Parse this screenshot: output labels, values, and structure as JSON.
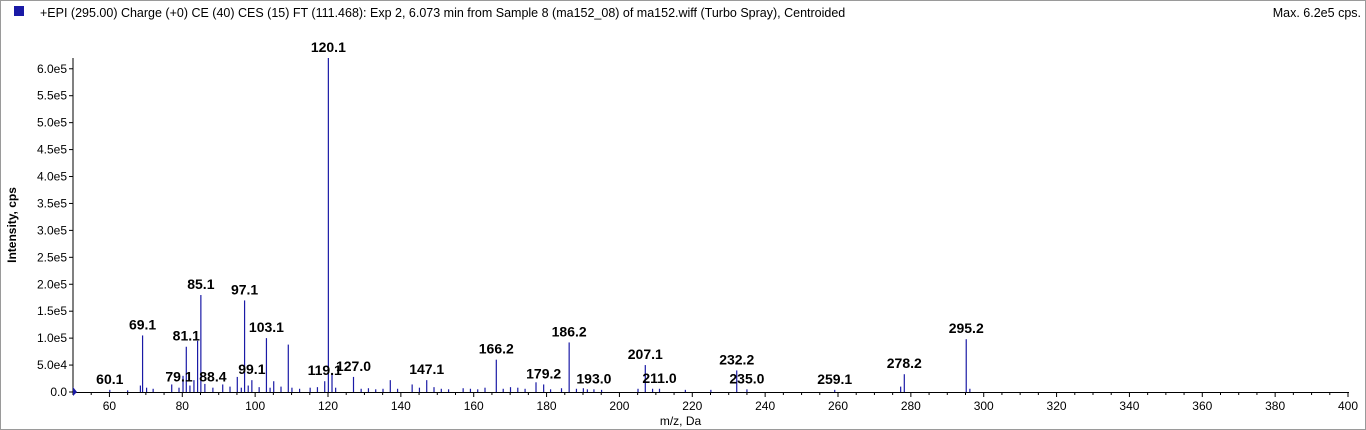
{
  "header": {
    "title": "+EPI (295.00) Charge (+0) CE (40) CES (15) FT (111.468): Exp 2, 6.073 min from Sample 8 (ma152_08) of ma152.wiff (Turbo Spray), Centroided",
    "max_label": "Max. 6.2e5 cps.",
    "swatch_color": "#1a1aa6"
  },
  "chart_data": {
    "type": "bar",
    "title": "",
    "xlabel": "m/z, Da",
    "ylabel": "Intensity, cps",
    "xlim": [
      50,
      400
    ],
    "ylim": [
      0,
      620000
    ],
    "grid": false,
    "bar_color": "#1a1aa6",
    "xticks": [
      60,
      80,
      100,
      120,
      140,
      160,
      180,
      200,
      220,
      240,
      260,
      280,
      300,
      320,
      340,
      360,
      380,
      400
    ],
    "yticks": [
      {
        "value": 0,
        "label": "0.0"
      },
      {
        "value": 50000,
        "label": "5.0e4"
      },
      {
        "value": 100000,
        "label": "1.0e5"
      },
      {
        "value": 150000,
        "label": "1.5e5"
      },
      {
        "value": 200000,
        "label": "2.0e5"
      },
      {
        "value": 250000,
        "label": "2.5e5"
      },
      {
        "value": 300000,
        "label": "3.0e5"
      },
      {
        "value": 350000,
        "label": "3.5e5"
      },
      {
        "value": 400000,
        "label": "4.0e5"
      },
      {
        "value": 450000,
        "label": "4.5e5"
      },
      {
        "value": 500000,
        "label": "5.0e5"
      },
      {
        "value": 550000,
        "label": "5.5e5"
      },
      {
        "value": 600000,
        "label": "6.0e5"
      }
    ],
    "peaks": [
      {
        "x": 50.2,
        "y": 5000
      },
      {
        "x": 60.1,
        "y": 4000
      },
      {
        "x": 65.0,
        "y": 3000
      },
      {
        "x": 68.5,
        "y": 12000
      },
      {
        "x": 69.1,
        "y": 105000
      },
      {
        "x": 70.2,
        "y": 8000
      },
      {
        "x": 72.0,
        "y": 6000
      },
      {
        "x": 77.1,
        "y": 14000
      },
      {
        "x": 79.1,
        "y": 8000
      },
      {
        "x": 80.2,
        "y": 30000
      },
      {
        "x": 81.1,
        "y": 84000
      },
      {
        "x": 82.1,
        "y": 12000
      },
      {
        "x": 83.2,
        "y": 22000
      },
      {
        "x": 84.2,
        "y": 95000
      },
      {
        "x": 85.1,
        "y": 180000
      },
      {
        "x": 86.2,
        "y": 15000
      },
      {
        "x": 88.4,
        "y": 8000
      },
      {
        "x": 91.1,
        "y": 14000
      },
      {
        "x": 93.1,
        "y": 10000
      },
      {
        "x": 95.1,
        "y": 28000
      },
      {
        "x": 96.2,
        "y": 8000
      },
      {
        "x": 97.1,
        "y": 170000
      },
      {
        "x": 98.1,
        "y": 12000
      },
      {
        "x": 99.1,
        "y": 22000
      },
      {
        "x": 101.1,
        "y": 9000
      },
      {
        "x": 103.1,
        "y": 100000
      },
      {
        "x": 104.1,
        "y": 8000
      },
      {
        "x": 105.1,
        "y": 20000
      },
      {
        "x": 107.1,
        "y": 10000
      },
      {
        "x": 109.1,
        "y": 88000
      },
      {
        "x": 110.1,
        "y": 8000
      },
      {
        "x": 112.2,
        "y": 6000
      },
      {
        "x": 115.1,
        "y": 8000
      },
      {
        "x": 117.1,
        "y": 9000
      },
      {
        "x": 119.1,
        "y": 20000
      },
      {
        "x": 120.1,
        "y": 620000
      },
      {
        "x": 121.1,
        "y": 35000
      },
      {
        "x": 122.1,
        "y": 8000
      },
      {
        "x": 127.0,
        "y": 28000
      },
      {
        "x": 129.1,
        "y": 6000
      },
      {
        "x": 131.1,
        "y": 7000
      },
      {
        "x": 133.1,
        "y": 5000
      },
      {
        "x": 135.1,
        "y": 6000
      },
      {
        "x": 137.1,
        "y": 22000
      },
      {
        "x": 139.1,
        "y": 6000
      },
      {
        "x": 143.1,
        "y": 14000
      },
      {
        "x": 145.1,
        "y": 8000
      },
      {
        "x": 147.1,
        "y": 22000
      },
      {
        "x": 149.1,
        "y": 9000
      },
      {
        "x": 151.1,
        "y": 6000
      },
      {
        "x": 153.1,
        "y": 5000
      },
      {
        "x": 157.1,
        "y": 7000
      },
      {
        "x": 159.1,
        "y": 6000
      },
      {
        "x": 161.1,
        "y": 5000
      },
      {
        "x": 163.1,
        "y": 8000
      },
      {
        "x": 166.2,
        "y": 60000
      },
      {
        "x": 168.1,
        "y": 6000
      },
      {
        "x": 170.1,
        "y": 9000
      },
      {
        "x": 172.1,
        "y": 8000
      },
      {
        "x": 174.1,
        "y": 6000
      },
      {
        "x": 177.1,
        "y": 18000
      },
      {
        "x": 179.2,
        "y": 14000
      },
      {
        "x": 181.1,
        "y": 5000
      },
      {
        "x": 184.1,
        "y": 7000
      },
      {
        "x": 186.2,
        "y": 92000
      },
      {
        "x": 188.2,
        "y": 6000
      },
      {
        "x": 190.1,
        "y": 7000
      },
      {
        "x": 191.2,
        "y": 5000
      },
      {
        "x": 193.0,
        "y": 5000
      },
      {
        "x": 195.1,
        "y": 4000
      },
      {
        "x": 205.1,
        "y": 6000
      },
      {
        "x": 207.1,
        "y": 50000
      },
      {
        "x": 209.1,
        "y": 6000
      },
      {
        "x": 211.0,
        "y": 6000
      },
      {
        "x": 218.1,
        "y": 4000
      },
      {
        "x": 225.1,
        "y": 4000
      },
      {
        "x": 232.2,
        "y": 40000
      },
      {
        "x": 235.0,
        "y": 5000
      },
      {
        "x": 259.1,
        "y": 4000
      },
      {
        "x": 277.2,
        "y": 10000
      },
      {
        "x": 278.2,
        "y": 33000
      },
      {
        "x": 295.2,
        "y": 98000
      },
      {
        "x": 296.2,
        "y": 6000
      }
    ],
    "annotations": [
      {
        "text": "60.1",
        "x": 60.1,
        "y": 4000
      },
      {
        "text": "69.1",
        "x": 69.1,
        "y": 105000
      },
      {
        "text": "79.1",
        "x": 79.1,
        "y": 8000
      },
      {
        "text": "81.1",
        "x": 81.1,
        "y": 84000
      },
      {
        "text": "85.1",
        "x": 85.1,
        "y": 180000
      },
      {
        "text": "88.4",
        "x": 88.4,
        "y": 8000
      },
      {
        "text": "97.1",
        "x": 97.1,
        "y": 170000
      },
      {
        "text": "99.1",
        "x": 99.1,
        "y": 22000
      },
      {
        "text": "103.1",
        "x": 103.1,
        "y": 100000
      },
      {
        "text": "119.1",
        "x": 119.1,
        "y": 20000
      },
      {
        "text": "120.1",
        "x": 120.1,
        "y": 620000
      },
      {
        "text": "127.0",
        "x": 127.0,
        "y": 28000
      },
      {
        "text": "147.1",
        "x": 147.1,
        "y": 22000
      },
      {
        "text": "166.2",
        "x": 166.2,
        "y": 60000
      },
      {
        "text": "179.2",
        "x": 179.2,
        "y": 14000
      },
      {
        "text": "186.2",
        "x": 186.2,
        "y": 92000
      },
      {
        "text": "193.0",
        "x": 193.0,
        "y": 5000
      },
      {
        "text": "207.1",
        "x": 207.1,
        "y": 50000
      },
      {
        "text": "211.0",
        "x": 211.0,
        "y": 6000
      },
      {
        "text": "232.2",
        "x": 232.2,
        "y": 40000
      },
      {
        "text": "235.0",
        "x": 235.0,
        "y": 5000
      },
      {
        "text": "259.1",
        "x": 259.1,
        "y": 4000
      },
      {
        "text": "278.2",
        "x": 278.2,
        "y": 33000
      },
      {
        "text": "295.2",
        "x": 295.2,
        "y": 98000
      }
    ]
  }
}
